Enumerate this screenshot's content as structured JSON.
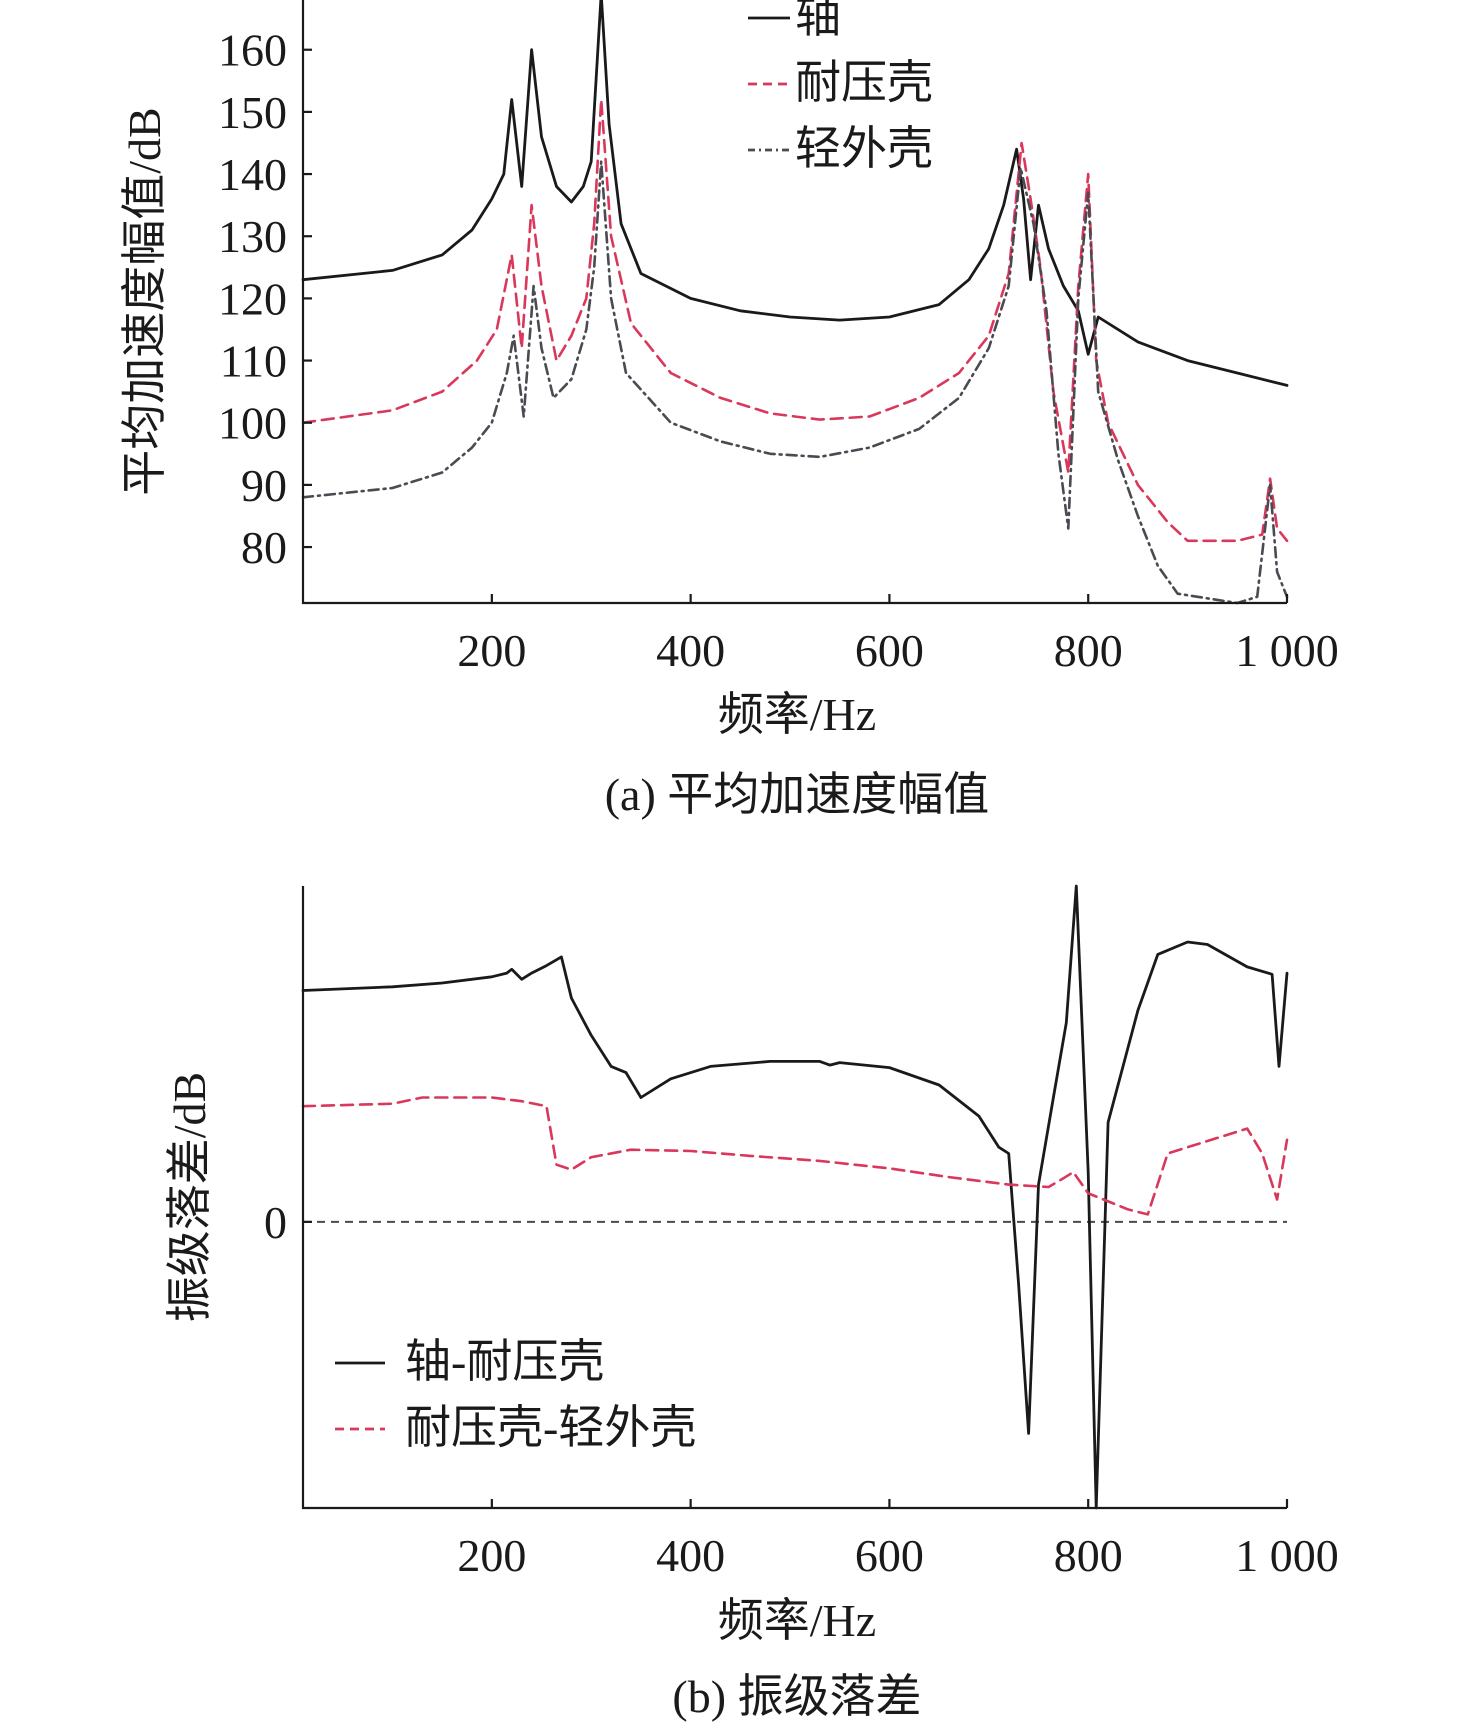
{
  "chart_data": [
    {
      "type": "line",
      "caption": "(a) 平均加速度幅值",
      "xlabel": "频率/Hz",
      "ylabel": "平均加速度幅值/dB",
      "xlim": [
        10,
        1000
      ],
      "ylim": [
        71,
        168
      ],
      "x_ticks": [
        200,
        400,
        600,
        800,
        1000
      ],
      "x_tick_labels": [
        "200",
        "400",
        "600",
        "800",
        "1 000"
      ],
      "y_ticks": [
        80,
        90,
        100,
        110,
        120,
        130,
        140,
        150,
        160
      ],
      "y_tick_labels": [
        "80",
        "90",
        "100",
        "110",
        "120",
        "130",
        "140",
        "150",
        "160"
      ],
      "grid": false,
      "legend_position": "top-center",
      "series": [
        {
          "name": "轴",
          "color": "#1a1a1a",
          "dash": "solid",
          "points": [
            [
              10,
              123
            ],
            [
              100,
              124.5
            ],
            [
              150,
              127
            ],
            [
              180,
              131
            ],
            [
              200,
              136
            ],
            [
              212,
              140
            ],
            [
              220,
              152
            ],
            [
              230,
              138
            ],
            [
              240,
              160
            ],
            [
              250,
              146
            ],
            [
              265,
              138
            ],
            [
              280,
              135.5
            ],
            [
              292,
              138
            ],
            [
              300,
              142
            ],
            [
              310,
              169
            ],
            [
              318,
              148
            ],
            [
              330,
              132
            ],
            [
              350,
              124
            ],
            [
              400,
              120
            ],
            [
              450,
              118
            ],
            [
              500,
              117
            ],
            [
              550,
              116.5
            ],
            [
              600,
              117
            ],
            [
              650,
              119
            ],
            [
              680,
              123
            ],
            [
              700,
              128
            ],
            [
              715,
              135
            ],
            [
              728,
              144
            ],
            [
              735,
              136
            ],
            [
              742,
              123
            ],
            [
              750,
              135
            ],
            [
              760,
              128
            ],
            [
              775,
              122
            ],
            [
              790,
              118
            ],
            [
              800,
              111
            ],
            [
              810,
              117
            ],
            [
              850,
              113
            ],
            [
              900,
              110
            ],
            [
              950,
              108
            ],
            [
              1000,
              106
            ]
          ]
        },
        {
          "name": "耐压壳",
          "color": "#d9385a",
          "dash": "dashed",
          "points": [
            [
              10,
              100
            ],
            [
              100,
              102
            ],
            [
              150,
              105
            ],
            [
              185,
              110
            ],
            [
              205,
              115
            ],
            [
              220,
              127
            ],
            [
              230,
              112
            ],
            [
              240,
              135
            ],
            [
              250,
              122
            ],
            [
              265,
              110
            ],
            [
              280,
              114
            ],
            [
              295,
              120
            ],
            [
              303,
              132
            ],
            [
              310,
              152
            ],
            [
              320,
              130
            ],
            [
              340,
              116
            ],
            [
              380,
              108
            ],
            [
              430,
              104
            ],
            [
              480,
              101.5
            ],
            [
              530,
              100.5
            ],
            [
              580,
              101
            ],
            [
              630,
              104
            ],
            [
              670,
              108
            ],
            [
              700,
              114
            ],
            [
              720,
              124
            ],
            [
              733,
              145
            ],
            [
              742,
              136
            ],
            [
              752,
              125
            ],
            [
              765,
              105
            ],
            [
              780,
              92
            ],
            [
              790,
              122
            ],
            [
              800,
              140
            ],
            [
              808,
              110
            ],
            [
              820,
              100
            ],
            [
              850,
              90
            ],
            [
              880,
              84
            ],
            [
              900,
              81
            ],
            [
              950,
              81
            ],
            [
              975,
              82
            ],
            [
              983,
              91
            ],
            [
              990,
              83
            ],
            [
              1000,
              81
            ]
          ]
        },
        {
          "name": "轻外壳",
          "color": "#4a4a52",
          "dash": "dashdot",
          "points": [
            [
              10,
              88
            ],
            [
              100,
              89.5
            ],
            [
              150,
              92
            ],
            [
              180,
              96
            ],
            [
              200,
              100
            ],
            [
              215,
              108
            ],
            [
              222,
              114
            ],
            [
              232,
              101
            ],
            [
              242,
              122
            ],
            [
              250,
              112
            ],
            [
              262,
              104
            ],
            [
              280,
              107
            ],
            [
              295,
              115
            ],
            [
              303,
              125
            ],
            [
              310,
              142
            ],
            [
              320,
              120
            ],
            [
              335,
              108
            ],
            [
              380,
              100
            ],
            [
              430,
              97
            ],
            [
              480,
              95
            ],
            [
              530,
              94.5
            ],
            [
              580,
              96
            ],
            [
              630,
              99
            ],
            [
              670,
              104
            ],
            [
              700,
              112
            ],
            [
              720,
              122
            ],
            [
              732,
              141
            ],
            [
              745,
              132
            ],
            [
              758,
              118
            ],
            [
              770,
              95
            ],
            [
              780,
              83
            ],
            [
              790,
              120
            ],
            [
              800,
              137
            ],
            [
              810,
              105
            ],
            [
              830,
              94
            ],
            [
              850,
              85
            ],
            [
              870,
              77
            ],
            [
              890,
              72.5
            ],
            [
              950,
              71
            ],
            [
              970,
              72
            ],
            [
              983,
              90
            ],
            [
              990,
              76
            ],
            [
              1000,
              72
            ]
          ]
        }
      ]
    },
    {
      "type": "line",
      "caption": "(b) 振级落差",
      "xlabel": "频率/Hz",
      "ylabel": "振级落差/dB",
      "xlim": [
        10,
        1000
      ],
      "ylim": [
        -23,
        27
      ],
      "x_ticks": [
        200,
        400,
        600,
        800,
        1000
      ],
      "x_tick_labels": [
        "200",
        "400",
        "600",
        "800",
        "1 000"
      ],
      "y_ticks": [
        0
      ],
      "y_tick_labels": [
        "0"
      ],
      "zero_line": 0,
      "grid": false,
      "legend_position": "bottom-left",
      "series": [
        {
          "name": "轴-耐压壳",
          "color": "#1a1a1a",
          "dash": "solid",
          "points": [
            [
              10,
              18.6
            ],
            [
              100,
              18.9
            ],
            [
              150,
              19.2
            ],
            [
              200,
              19.7
            ],
            [
              215,
              20.0
            ],
            [
              220,
              20.3
            ],
            [
              230,
              19.5
            ],
            [
              240,
              20.0
            ],
            [
              255,
              20.6
            ],
            [
              270,
              21.3
            ],
            [
              280,
              18.0
            ],
            [
              300,
              15.0
            ],
            [
              320,
              12.5
            ],
            [
              335,
              12.0
            ],
            [
              350,
              10.0
            ],
            [
              380,
              11.5
            ],
            [
              420,
              12.5
            ],
            [
              480,
              12.9
            ],
            [
              530,
              12.9
            ],
            [
              540,
              12.6
            ],
            [
              550,
              12.8
            ],
            [
              600,
              12.4
            ],
            [
              650,
              11.0
            ],
            [
              690,
              8.5
            ],
            [
              710,
              6.0
            ],
            [
              720,
              5.5
            ],
            [
              730,
              -5.0
            ],
            [
              740,
              -17.0
            ],
            [
              750,
              3.0
            ],
            [
              765,
              10.0
            ],
            [
              778,
              16.0
            ],
            [
              788,
              27.0
            ],
            [
              800,
              4.0
            ],
            [
              808,
              -23.0
            ],
            [
              820,
              8.0
            ],
            [
              850,
              17.0
            ],
            [
              870,
              21.5
            ],
            [
              900,
              22.5
            ],
            [
              920,
              22.3
            ],
            [
              960,
              20.5
            ],
            [
              985,
              19.9
            ],
            [
              992,
              12.5
            ],
            [
              1000,
              20.0
            ]
          ]
        },
        {
          "name": "耐压壳-轻外壳",
          "color": "#d9385a",
          "dash": "dashed",
          "points": [
            [
              10,
              9.3
            ],
            [
              100,
              9.5
            ],
            [
              130,
              10.0
            ],
            [
              200,
              10.0
            ],
            [
              230,
              9.7
            ],
            [
              255,
              9.3
            ],
            [
              265,
              4.6
            ],
            [
              280,
              4.2
            ],
            [
              300,
              5.2
            ],
            [
              340,
              5.8
            ],
            [
              400,
              5.7
            ],
            [
              460,
              5.3
            ],
            [
              530,
              4.9
            ],
            [
              600,
              4.3
            ],
            [
              660,
              3.6
            ],
            [
              720,
              3.0
            ],
            [
              760,
              2.8
            ],
            [
              775,
              3.5
            ],
            [
              785,
              4.0
            ],
            [
              800,
              2.3
            ],
            [
              840,
              1.0
            ],
            [
              860,
              0.6
            ],
            [
              880,
              5.5
            ],
            [
              900,
              6.0
            ],
            [
              960,
              7.5
            ],
            [
              975,
              5.5
            ],
            [
              990,
              1.8
            ],
            [
              1000,
              6.6
            ]
          ]
        }
      ]
    }
  ]
}
